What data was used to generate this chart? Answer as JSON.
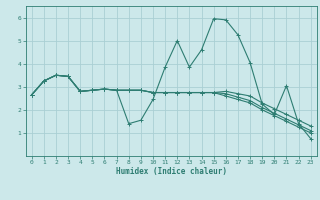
{
  "xlabel": "Humidex (Indice chaleur)",
  "bg_color": "#cce8ea",
  "line_color": "#2e7d72",
  "grid_color": "#aacfd4",
  "spine_color": "#2e7d72",
  "xlim": [
    -0.5,
    23.5
  ],
  "ylim": [
    0,
    6.5
  ],
  "xticks": [
    0,
    1,
    2,
    3,
    4,
    5,
    6,
    7,
    8,
    9,
    10,
    11,
    12,
    13,
    14,
    15,
    16,
    17,
    18,
    19,
    20,
    21,
    22,
    23
  ],
  "yticks": [
    1,
    2,
    3,
    4,
    5,
    6
  ],
  "lines": [
    {
      "x": [
        0,
        1,
        2,
        3,
        4,
        5,
        6,
        7,
        8,
        9,
        10,
        11,
        12,
        13,
        14,
        15,
        16,
        17,
        18,
        19,
        20,
        21,
        22,
        23
      ],
      "y": [
        2.65,
        3.25,
        3.5,
        3.45,
        2.8,
        2.85,
        2.9,
        2.85,
        1.4,
        1.55,
        2.45,
        3.85,
        5.0,
        3.85,
        4.6,
        5.95,
        5.9,
        5.25,
        4.05,
        2.25,
        1.8,
        3.05,
        1.4,
        0.75
      ]
    },
    {
      "x": [
        0,
        1,
        2,
        3,
        4,
        5,
        6,
        7,
        8,
        9,
        10,
        11,
        12,
        13,
        14,
        15,
        16,
        17,
        18,
        19,
        20,
        21,
        22,
        23
      ],
      "y": [
        2.65,
        3.25,
        3.5,
        3.45,
        2.8,
        2.85,
        2.9,
        2.85,
        2.85,
        2.85,
        2.75,
        2.75,
        2.75,
        2.75,
        2.75,
        2.75,
        2.6,
        2.45,
        2.3,
        2.0,
        1.75,
        1.5,
        1.25,
        1.0
      ]
    },
    {
      "x": [
        0,
        1,
        2,
        3,
        4,
        5,
        6,
        7,
        8,
        9,
        10,
        11,
        12,
        13,
        14,
        15,
        16,
        17,
        18,
        19,
        20,
        21,
        22,
        23
      ],
      "y": [
        2.65,
        3.25,
        3.5,
        3.45,
        2.8,
        2.85,
        2.9,
        2.85,
        2.85,
        2.85,
        2.75,
        2.75,
        2.75,
        2.75,
        2.75,
        2.75,
        2.7,
        2.55,
        2.4,
        2.1,
        1.85,
        1.6,
        1.35,
        1.1
      ]
    },
    {
      "x": [
        0,
        1,
        2,
        3,
        4,
        5,
        6,
        7,
        8,
        9,
        10,
        11,
        12,
        13,
        14,
        15,
        16,
        17,
        18,
        19,
        20,
        21,
        22,
        23
      ],
      "y": [
        2.65,
        3.25,
        3.5,
        3.45,
        2.8,
        2.85,
        2.9,
        2.85,
        2.85,
        2.85,
        2.75,
        2.75,
        2.75,
        2.75,
        2.75,
        2.75,
        2.8,
        2.7,
        2.6,
        2.3,
        2.05,
        1.8,
        1.55,
        1.3
      ]
    }
  ]
}
